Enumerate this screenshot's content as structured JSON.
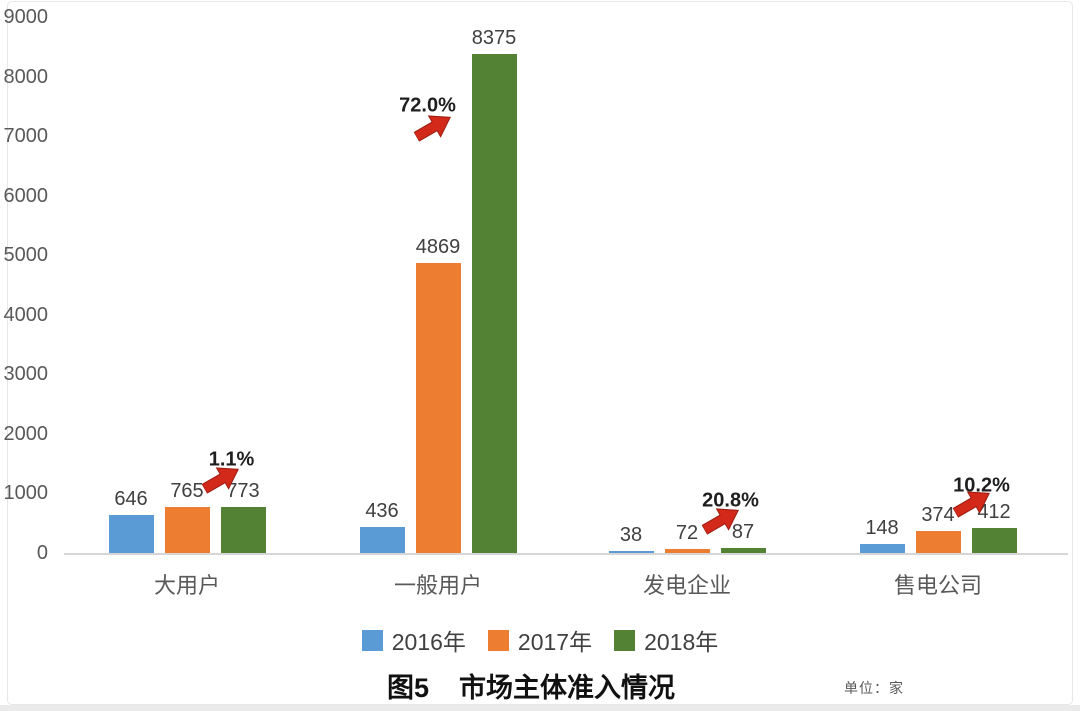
{
  "chart_data": {
    "type": "bar",
    "title": "图5    市场主体准入情况",
    "unit_label": "单位：家",
    "categories": [
      "大用户",
      "一般用户",
      "发电企业",
      "售电公司"
    ],
    "series": [
      {
        "name": "2016年",
        "color": "#5B9BD5",
        "values": [
          646,
          436,
          38,
          148
        ]
      },
      {
        "name": "2017年",
        "color": "#ED7D31",
        "values": [
          765,
          4869,
          72,
          374
        ]
      },
      {
        "name": "2018年",
        "color": "#548235",
        "values": [
          773,
          8375,
          87,
          412
        ]
      }
    ],
    "growth_annotations": [
      {
        "category": "大用户",
        "label": "1.1%"
      },
      {
        "category": "一般用户",
        "label": "72.0%"
      },
      {
        "category": "发电企业",
        "label": "20.8%"
      },
      {
        "category": "售电公司",
        "label": "10.2%"
      }
    ],
    "y_axis": {
      "min": 0,
      "max": 9000,
      "step": 1000,
      "ticks": [
        "9000",
        "8000",
        "7000",
        "6000",
        "5000",
        "4000",
        "3000",
        "2000",
        "1000",
        "0"
      ]
    },
    "legend_position": "bottom",
    "grid": false,
    "colors": {
      "annotation_arrow": "#D2291B",
      "annotation_arrow_stroke": "#9c1c10",
      "axis_line": "#d6d6d6",
      "axis_text": "#595959",
      "value_text": "#404040"
    }
  }
}
